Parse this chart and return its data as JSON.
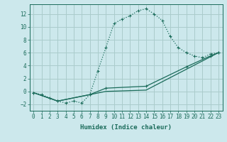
{
  "xlabel": "Humidex (Indice chaleur)",
  "bg_color": "#cce8ec",
  "grid_color": "#aacccc",
  "line_color": "#1a6b5a",
  "xlim": [
    -0.5,
    23.5
  ],
  "ylim": [
    -3,
    13.5
  ],
  "curve1_x": [
    0,
    1,
    2,
    3,
    4,
    5,
    6,
    7,
    8,
    9,
    10,
    11,
    12,
    13,
    14,
    15,
    16,
    17,
    18,
    19,
    20,
    21,
    22,
    23
  ],
  "curve1_y": [
    -0.2,
    -0.5,
    -1.0,
    -1.5,
    -1.8,
    -1.5,
    -1.8,
    -0.5,
    3.2,
    6.8,
    10.5,
    11.2,
    11.7,
    12.5,
    12.8,
    12.0,
    11.0,
    8.5,
    6.8,
    6.0,
    5.5,
    5.2,
    5.8,
    6.0
  ],
  "curve2_x": [
    0,
    3,
    7,
    9,
    14,
    19,
    22,
    23
  ],
  "curve2_y": [
    -0.2,
    -1.5,
    -0.5,
    0.5,
    0.8,
    3.8,
    5.5,
    6.0
  ],
  "curve3_x": [
    0,
    3,
    9,
    14,
    23
  ],
  "curve3_y": [
    -0.2,
    -1.5,
    0.0,
    0.2,
    6.0
  ],
  "xticks": [
    0,
    1,
    2,
    3,
    4,
    5,
    6,
    7,
    8,
    9,
    10,
    11,
    12,
    13,
    14,
    15,
    16,
    17,
    18,
    19,
    20,
    21,
    22,
    23
  ],
  "yticks": [
    -2,
    0,
    2,
    4,
    6,
    8,
    10,
    12
  ]
}
